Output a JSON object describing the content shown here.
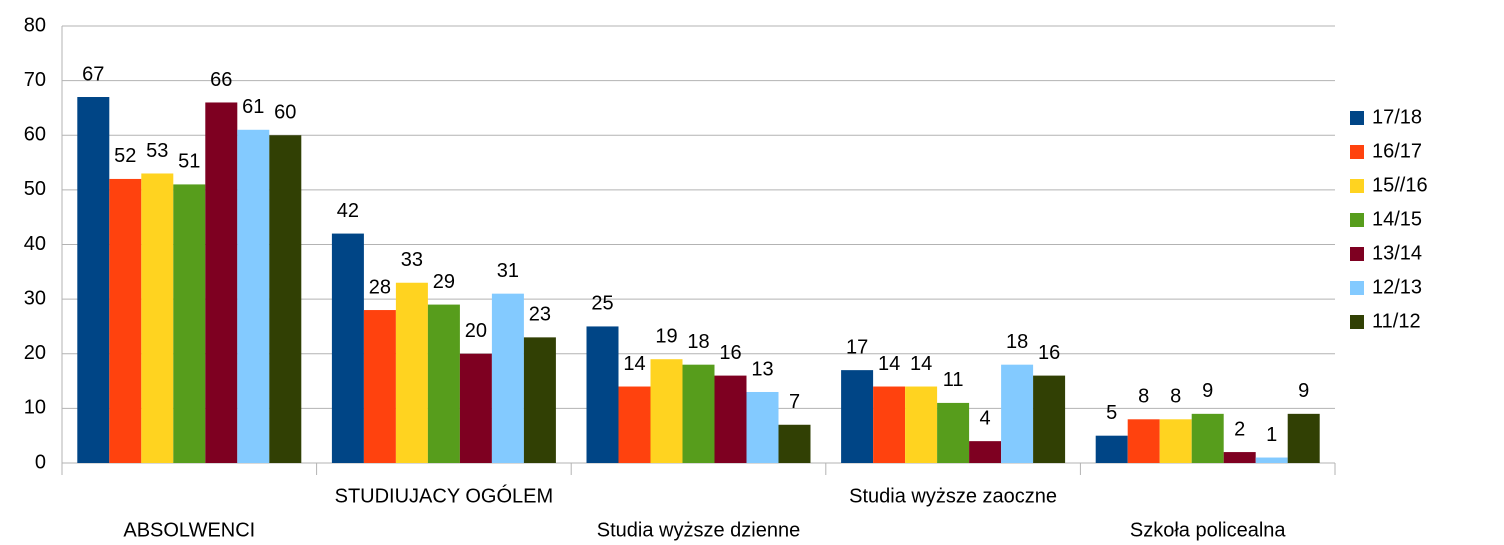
{
  "chart_data": {
    "type": "bar",
    "categories": [
      "ABSOLWENCI",
      "STUDIUJACY OGÓLEM",
      "Studia wyższe dzienne",
      "Studia wyższe zaoczne",
      "Szkoła policealna"
    ],
    "series": [
      {
        "name": "17/18",
        "color": "#004586",
        "values": [
          67,
          42,
          25,
          17,
          5
        ]
      },
      {
        "name": "16/17",
        "color": "#ff420e",
        "values": [
          52,
          28,
          14,
          14,
          8
        ]
      },
      {
        "name": "15//16",
        "color": "#ffd320",
        "values": [
          53,
          33,
          19,
          14,
          8
        ]
      },
      {
        "name": "14/15",
        "color": "#579d1c",
        "values": [
          51,
          29,
          18,
          11,
          9
        ]
      },
      {
        "name": "13/14",
        "color": "#7e0021",
        "values": [
          66,
          20,
          16,
          4,
          2
        ]
      },
      {
        "name": "12/13",
        "color": "#83caff",
        "values": [
          61,
          31,
          13,
          18,
          1
        ]
      },
      {
        "name": "11/12",
        "color": "#314004",
        "values": [
          60,
          23,
          7,
          16,
          9
        ]
      }
    ],
    "ylim": [
      0,
      80
    ],
    "yticks": [
      0,
      10,
      20,
      30,
      40,
      50,
      60,
      70,
      80
    ],
    "grid": true,
    "legend": "right"
  }
}
